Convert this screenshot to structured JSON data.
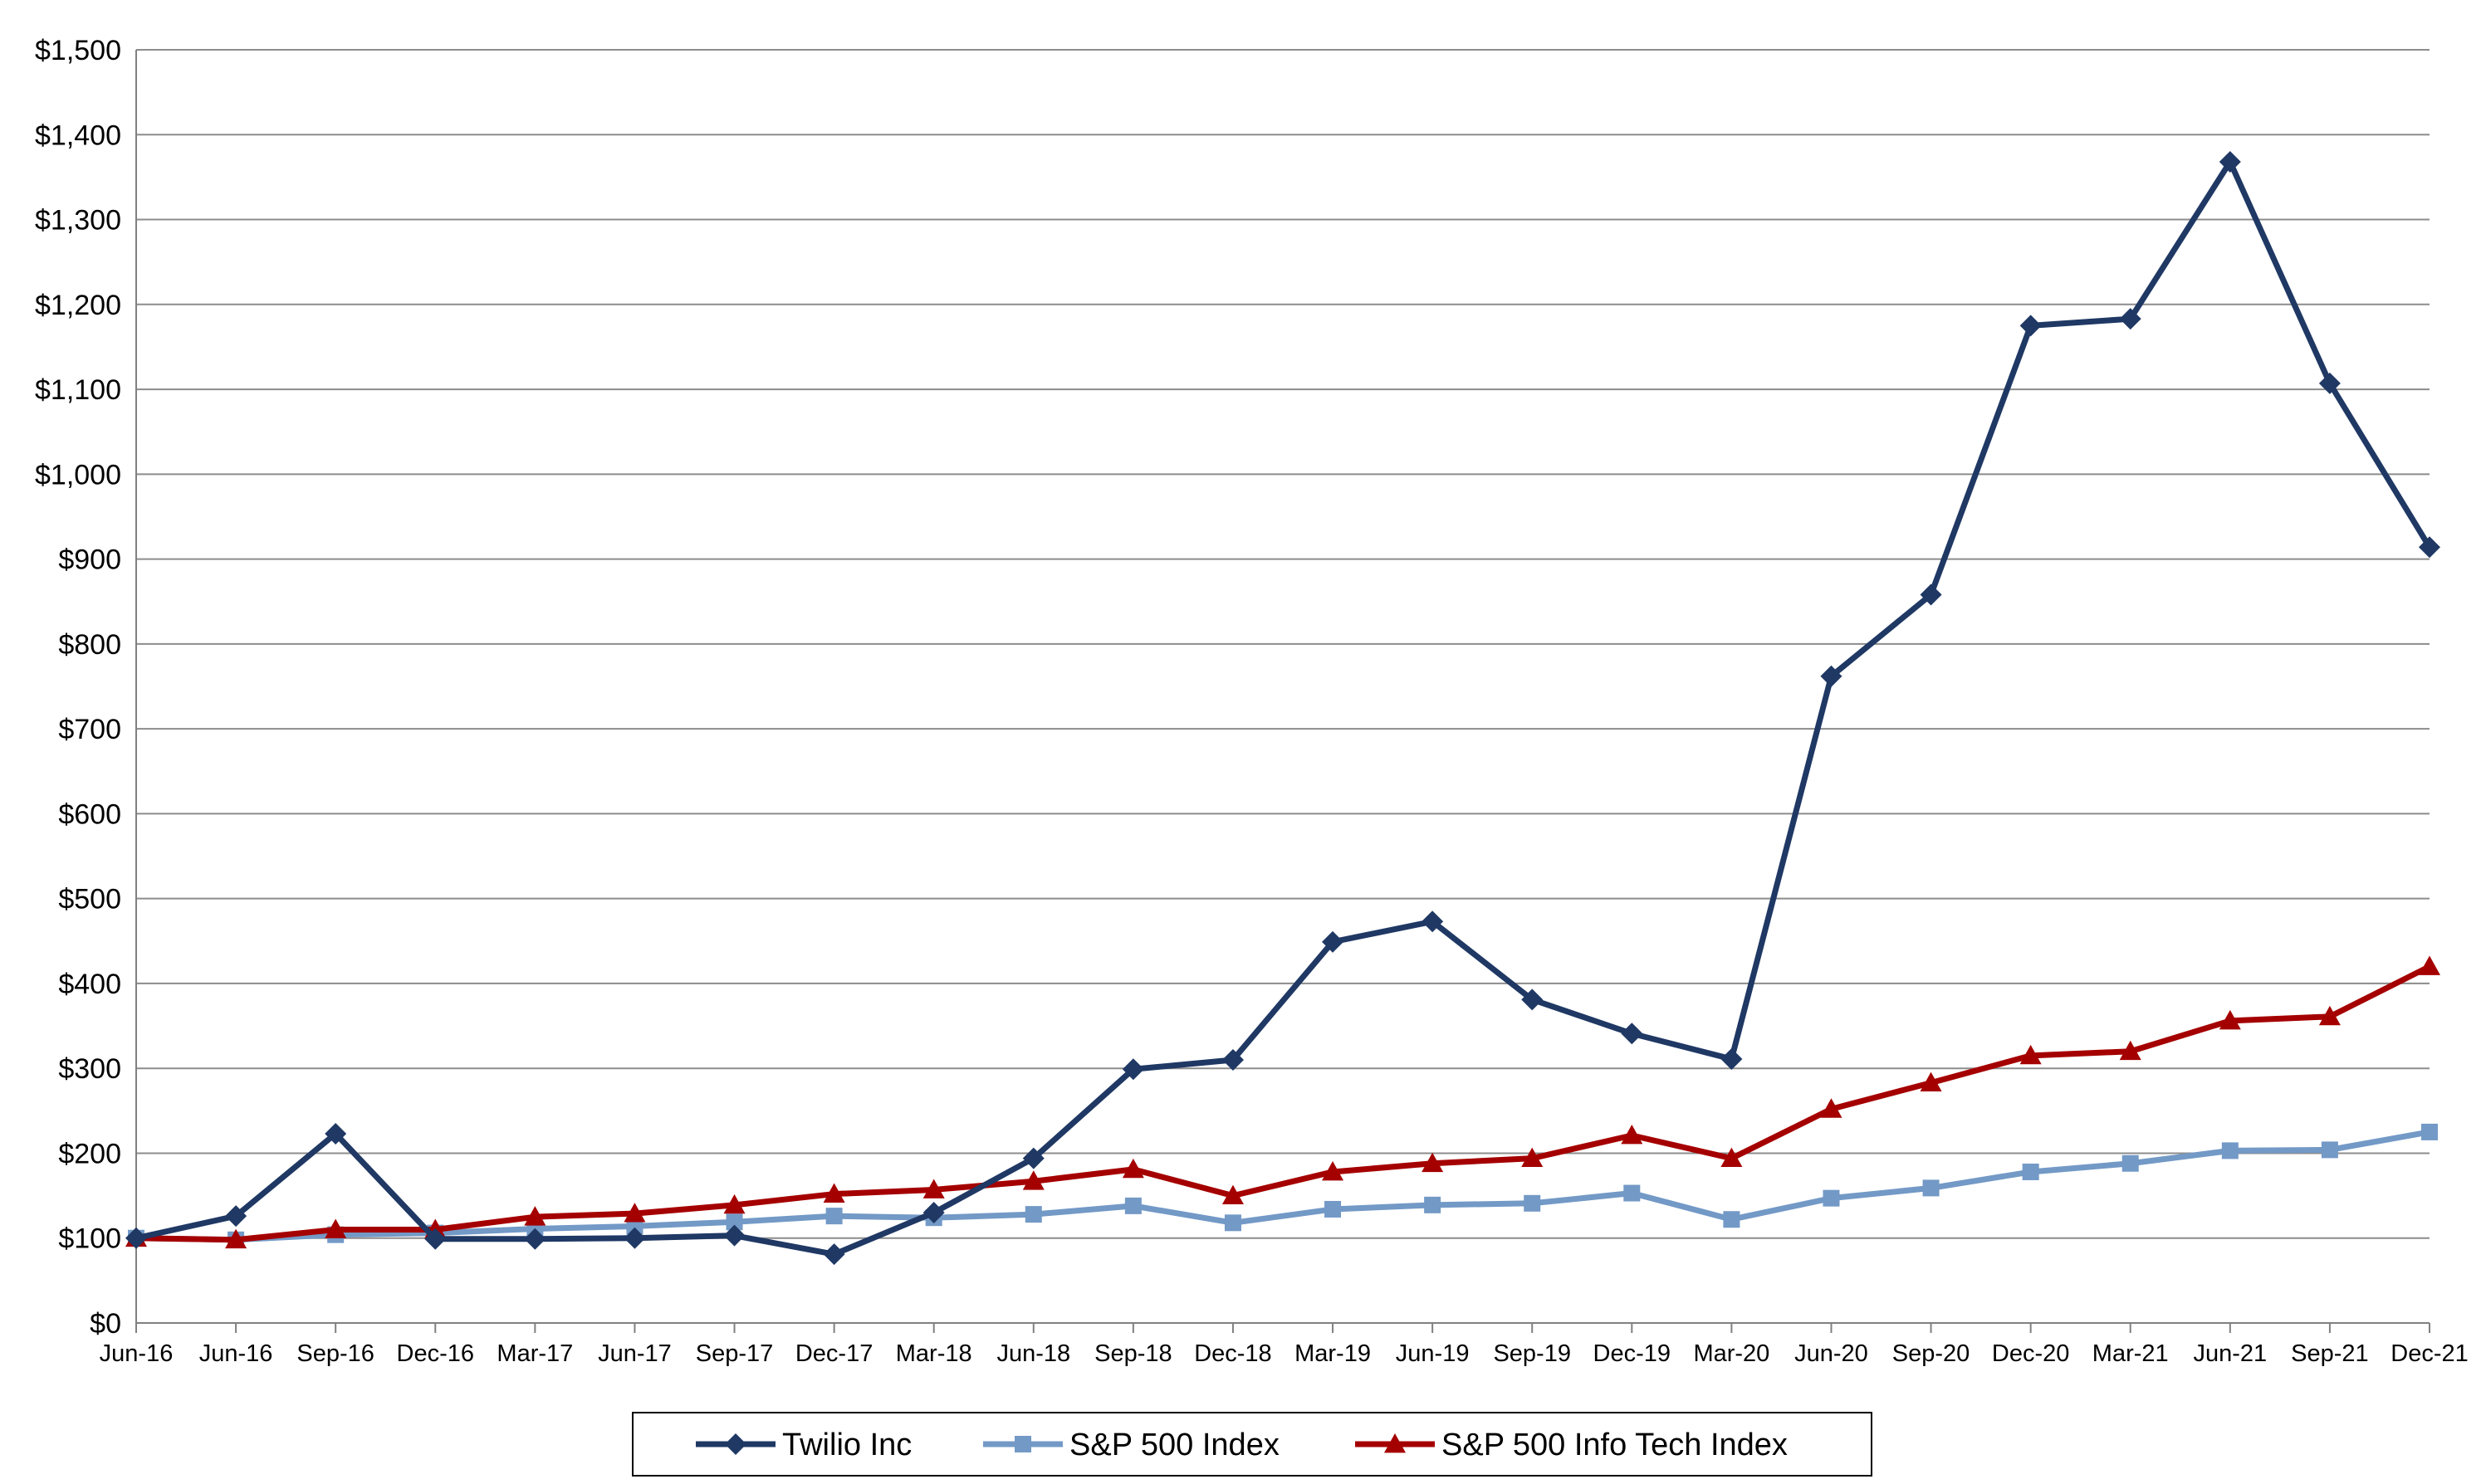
{
  "chart_data": {
    "type": "line",
    "title": "",
    "xlabel": "",
    "ylabel": "",
    "categories": [
      "Jun-16",
      "Jun-16",
      "Sep-16",
      "Dec-16",
      "Mar-17",
      "Jun-17",
      "Sep-17",
      "Dec-17",
      "Mar-18",
      "Jun-18",
      "Sep-18",
      "Dec-18",
      "Mar-19",
      "Jun-19",
      "Sep-19",
      "Dec-19",
      "Mar-20",
      "Jun-20",
      "Sep-20",
      "Dec-20",
      "Mar-21",
      "Jun-21",
      "Sep-21",
      "Dec-21"
    ],
    "ylim": [
      0,
      1500
    ],
    "yticks": [
      0,
      100,
      200,
      300,
      400,
      500,
      600,
      700,
      800,
      900,
      1000,
      1100,
      1200,
      1300,
      1400,
      1500
    ],
    "ytick_labels": [
      "$0",
      "$100",
      "$200",
      "$300",
      "$400",
      "$500",
      "$600",
      "$700",
      "$800",
      "$900",
      "$1,000",
      "$1,100",
      "$1,200",
      "$1,300",
      "$1,400",
      "$1,500"
    ],
    "grid": true,
    "legend_position": "bottom",
    "series": [
      {
        "name": "Twilio Inc",
        "color": "#1F3864",
        "marker": "diamond",
        "values": [
          100,
          126,
          223,
          99,
          99,
          100,
          103,
          81,
          130,
          194,
          299,
          310,
          449,
          473,
          381,
          341,
          311,
          762,
          858,
          1175,
          1183,
          1368,
          1107,
          914
        ]
      },
      {
        "name": "S&P 500 Index",
        "color": "#7399C6",
        "marker": "square",
        "values": [
          100,
          98,
          104,
          106,
          111,
          114,
          119,
          126,
          124,
          128,
          138,
          118,
          134,
          139,
          141,
          153,
          122,
          147,
          159,
          178,
          188,
          203,
          204,
          225
        ]
      },
      {
        "name": "S&P 500 Info Tech Index",
        "color": "#A50000",
        "marker": "triangle",
        "values": [
          100,
          98,
          110,
          110,
          125,
          129,
          139,
          152,
          157,
          167,
          181,
          150,
          178,
          188,
          194,
          221,
          194,
          252,
          283,
          315,
          320,
          356,
          361,
          420
        ]
      }
    ]
  }
}
